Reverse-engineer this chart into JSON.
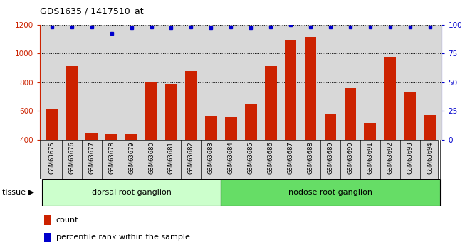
{
  "title": "GDS1635 / 1417510_at",
  "samples": [
    "GSM63675",
    "GSM63676",
    "GSM63677",
    "GSM63678",
    "GSM63679",
    "GSM63680",
    "GSM63681",
    "GSM63682",
    "GSM63683",
    "GSM63684",
    "GSM63685",
    "GSM63686",
    "GSM63687",
    "GSM63688",
    "GSM63689",
    "GSM63690",
    "GSM63691",
    "GSM63692",
    "GSM63693",
    "GSM63694"
  ],
  "counts": [
    615,
    910,
    450,
    440,
    440,
    800,
    790,
    875,
    560,
    555,
    645,
    910,
    1090,
    1115,
    575,
    760,
    515,
    975,
    735,
    570
  ],
  "percentiles": [
    98,
    98,
    98,
    92,
    97,
    98,
    97,
    98,
    97,
    98,
    97,
    98,
    100,
    98,
    98,
    98,
    98,
    98,
    98,
    98
  ],
  "ymin": 400,
  "ymax": 1200,
  "yticks": [
    400,
    600,
    800,
    1000,
    1200
  ],
  "right_yticks": [
    0,
    25,
    50,
    75,
    100
  ],
  "group1_label": "dorsal root ganglion",
  "group1_count": 9,
  "group2_label": "nodose root ganglion",
  "group2_count": 11,
  "group1_color": "#ccffcc",
  "group2_color": "#66dd66",
  "bar_color": "#cc2200",
  "dot_color": "#0000cc",
  "bg_color": "#d8d8d8",
  "legend_count_label": "count",
  "legend_pct_label": "percentile rank within the sample"
}
